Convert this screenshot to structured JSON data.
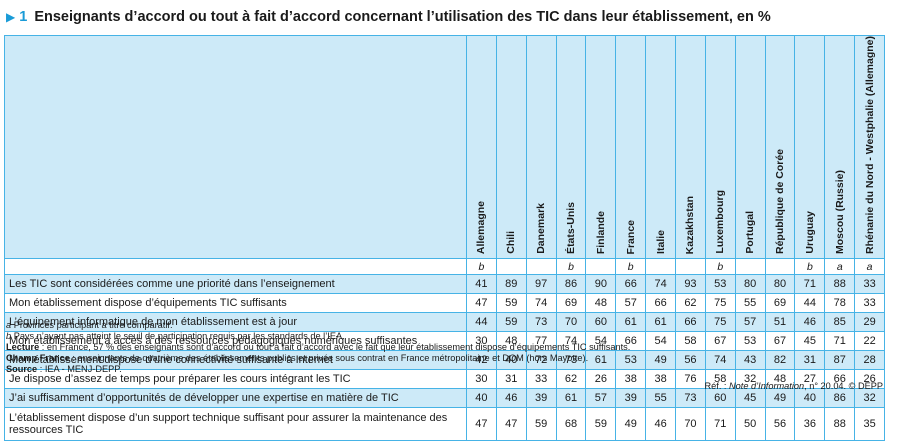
{
  "title": {
    "number": "1",
    "text": "Enseignants d’accord ou tout à fait d’accord concernant l’utilisation des TIC dans leur établissement, en %"
  },
  "columns": [
    {
      "name": "Allemagne",
      "note": "b"
    },
    {
      "name": "Chili",
      "note": ""
    },
    {
      "name": "Danemark",
      "note": ""
    },
    {
      "name": "États-Unis",
      "note": "b"
    },
    {
      "name": "Finlande",
      "note": ""
    },
    {
      "name": "France",
      "note": "b"
    },
    {
      "name": "Italie",
      "note": ""
    },
    {
      "name": "Kazakhstan",
      "note": ""
    },
    {
      "name": "Luxembourg",
      "note": "b"
    },
    {
      "name": "Portugal",
      "note": ""
    },
    {
      "name": "République de Corée",
      "note": ""
    },
    {
      "name": "Uruguay",
      "note": "b"
    },
    {
      "name": "Moscou (Russie)",
      "note": "a"
    },
    {
      "name": "Rhénanie du Nord - Westphalie (Allemagne)",
      "note": "a"
    }
  ],
  "rows": [
    {
      "label": "Les TIC sont considérées comme une priorité dans l’enseignement",
      "values": [
        "41",
        "89",
        "97",
        "86",
        "90",
        "66",
        "74",
        "93",
        "53",
        "80",
        "80",
        "71",
        "88",
        "33"
      ]
    },
    {
      "label": "Mon établissement dispose d’équipements TIC suffisants",
      "values": [
        "47",
        "59",
        "74",
        "69",
        "48",
        "57",
        "66",
        "62",
        "75",
        "55",
        "69",
        "44",
        "78",
        "33"
      ]
    },
    {
      "label": "L’équipement informatique de mon établissement est à jour",
      "values": [
        "44",
        "59",
        "73",
        "70",
        "60",
        "61",
        "61",
        "66",
        "75",
        "57",
        "51",
        "46",
        "85",
        "29"
      ]
    },
    {
      "label": "Mon établissement a accès à des ressources pédagogiques numériques suffisantes",
      "values": [
        "30",
        "48",
        "77",
        "74",
        "54",
        "66",
        "54",
        "58",
        "67",
        "53",
        "67",
        "45",
        "71",
        "22"
      ]
    },
    {
      "label": "Mon établissement dispose d’une connectivité suffisante à Internet",
      "values": [
        "42",
        "40",
        "72",
        "73",
        "61",
        "53",
        "49",
        "56",
        "74",
        "43",
        "82",
        "31",
        "87",
        "28"
      ]
    },
    {
      "label": "Je dispose d’assez de temps pour préparer les cours intégrant les TIC",
      "values": [
        "30",
        "31",
        "33",
        "62",
        "26",
        "38",
        "38",
        "76",
        "58",
        "32",
        "48",
        "27",
        "66",
        "26"
      ]
    },
    {
      "label": "J’ai suffisamment d’opportunités de développer une expertise en matière de TIC",
      "values": [
        "40",
        "46",
        "39",
        "61",
        "57",
        "39",
        "55",
        "73",
        "60",
        "45",
        "49",
        "40",
        "86",
        "32"
      ]
    },
    {
      "label": "L’établissement dispose d’un support technique suffisant pour assurer la maintenance des ressources TIC",
      "values": [
        "47",
        "47",
        "59",
        "68",
        "59",
        "49",
        "46",
        "70",
        "71",
        "50",
        "56",
        "36",
        "88",
        "35"
      ]
    }
  ],
  "footnotes": {
    "a": {
      "key": "a",
      "text": "Provinces participant à titre comparatif."
    },
    "b": {
      "key": "b",
      "text": "Pays n’ayant pas atteint le seuil de participation requis par les standards de l’IEA."
    },
    "lecture": {
      "key": "Lecture",
      "text": " : en France, 57 % des enseignants sont d’accord ou tout à fait d’accord avec le fait que leur établissement dispose d’équipements TIC suffisants."
    },
    "champ": {
      "key": "Champ France",
      "text": " : enseignants de quatrième des établissements publics et privés sous contrat en France métropolitaine et DOM (hors Mayotte)."
    },
    "source": {
      "key": "Source",
      "text": " : IEA - MENJ-DEPP."
    }
  },
  "reference": {
    "prefix": "Réf. : ",
    "publication": "Note d’Information",
    "suffix": ", n° 20.04. © DEPP"
  },
  "colors": {
    "accent": "#1a9bd7",
    "border": "#46b3e6",
    "shade": "#cdeaf8"
  }
}
